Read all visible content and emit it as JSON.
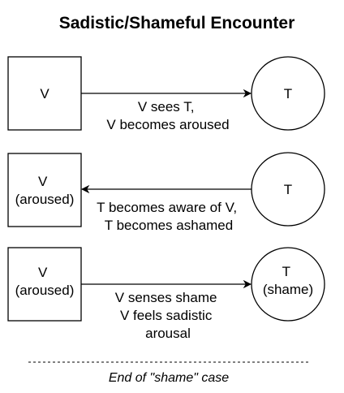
{
  "title": "Sadistic/Shameful Encounter",
  "rows": [
    {
      "left_lines": [
        "V"
      ],
      "right_lines": [
        "T"
      ],
      "arrow_direction": "right",
      "edge_lines": [
        "V sees T,",
        "V becomes aroused"
      ]
    },
    {
      "left_lines": [
        "V",
        "(aroused)"
      ],
      "right_lines": [
        "T"
      ],
      "arrow_direction": "left",
      "edge_lines": [
        "T becomes aware of V,",
        "T becomes ashamed"
      ]
    },
    {
      "left_lines": [
        "V",
        "(aroused)"
      ],
      "right_lines": [
        "T",
        "(shame)"
      ],
      "arrow_direction": "right",
      "edge_lines": [
        "V senses shame",
        "V feels sadistic",
        "arousal"
      ]
    }
  ],
  "footer": {
    "label": "End of \"shame\" case"
  },
  "colors": {
    "stroke": "#000000",
    "fill": "#ffffff",
    "text": "#000000"
  }
}
